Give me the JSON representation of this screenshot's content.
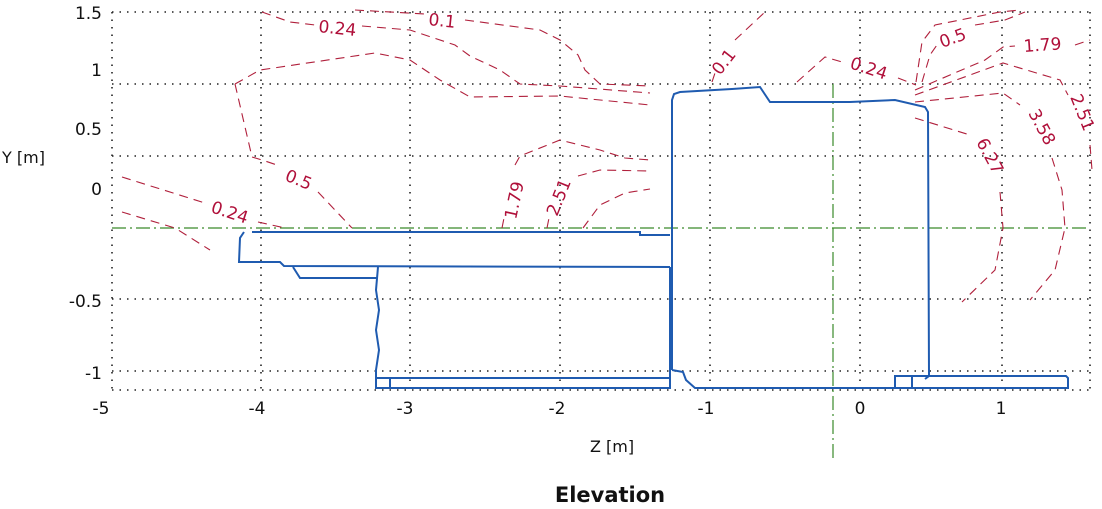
{
  "chart_data": {
    "type": "contour",
    "title": "Elevation",
    "xlabel": "Z [m]",
    "ylabel": "Y [m]",
    "x_ticks": [
      "-5",
      "-4",
      "-3",
      "-2",
      "-1",
      "0",
      "1"
    ],
    "y_ticks": [
      "1.5",
      "1",
      "0.5",
      "0",
      "-0.5",
      "-1"
    ],
    "xlim": [
      -5,
      1.5
    ],
    "ylim": [
      -1.1,
      1.5
    ],
    "grid": true,
    "contour_levels": [
      0.1,
      0.24,
      0.5,
      1.79,
      2.51,
      3.58,
      6.27
    ],
    "contour_labels": [
      "0.24",
      "0.1",
      "0.5",
      "0.24",
      "1.79",
      "2.51",
      "0.1",
      "0.24",
      "0.5",
      "1.79",
      "2.51",
      "3.58",
      "6.27"
    ],
    "colors": {
      "contour": "#b0203c",
      "structure": "#1f5bb0",
      "reference_axes": "#3a8a2a"
    }
  }
}
